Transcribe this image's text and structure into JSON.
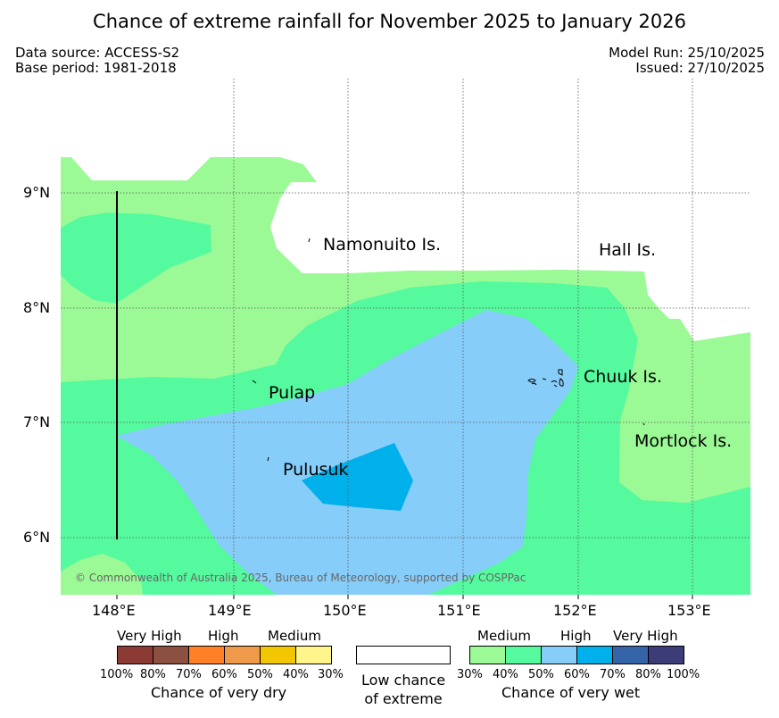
{
  "title": "Chance of extreme rainfall for November 2025 to January 2026",
  "meta": {
    "data_source": "Data source: ACCESS-S2",
    "base_period": "Base period: 1981-2018",
    "model_run": "Model Run: 25/10/2025",
    "issued": "Issued: 27/10/2025"
  },
  "axes": {
    "lat_labels": [
      "9°N",
      "8°N",
      "7°N",
      "6°N"
    ],
    "lon_labels": [
      "148°E",
      "149°E",
      "150°E",
      "151°E",
      "152°E",
      "153°E"
    ]
  },
  "places": {
    "namonuito": "Namonuito Is.",
    "hall": "Hall Is.",
    "pulap": "Pulap",
    "chuuk": "Chuuk Is.",
    "mortlock": "Mortlock Is.",
    "pulusuk": "Pulusuk"
  },
  "copyright": "© Commonwealth of Australia 2025, Bureau of Meteorology, supported by COSPPac",
  "legend": {
    "dry": {
      "headers": [
        "Very High",
        "High",
        "Medium"
      ],
      "ticks": [
        "100%",
        "80%",
        "70%",
        "60%",
        "50%",
        "40%",
        "30%"
      ],
      "caption": "Chance of very dry",
      "colors": [
        "#8b3a34",
        "#8b5040",
        "#ff8027",
        "#ef9a4a",
        "#f2c600",
        "#fff58a"
      ]
    },
    "low": {
      "line1": "Low chance",
      "line2": "of extreme",
      "color": "#ffffff"
    },
    "wet": {
      "headers": [
        "Medium",
        "High",
        "Very High"
      ],
      "ticks": [
        "30%",
        "40%",
        "50%",
        "60%",
        "70%",
        "80%",
        "100%"
      ],
      "caption": "Chance of very wet",
      "colors": [
        "#9cfa96",
        "#55fa9f",
        "#87cdfa",
        "#00b0eb",
        "#3565a8",
        "#3c3d78"
      ]
    }
  },
  "colors": {
    "medium_wet": "#9cfa96",
    "medium_high_wet": "#55fa9f",
    "high_wet": "#87cdfa",
    "higher_wet": "#00b0eb"
  }
}
